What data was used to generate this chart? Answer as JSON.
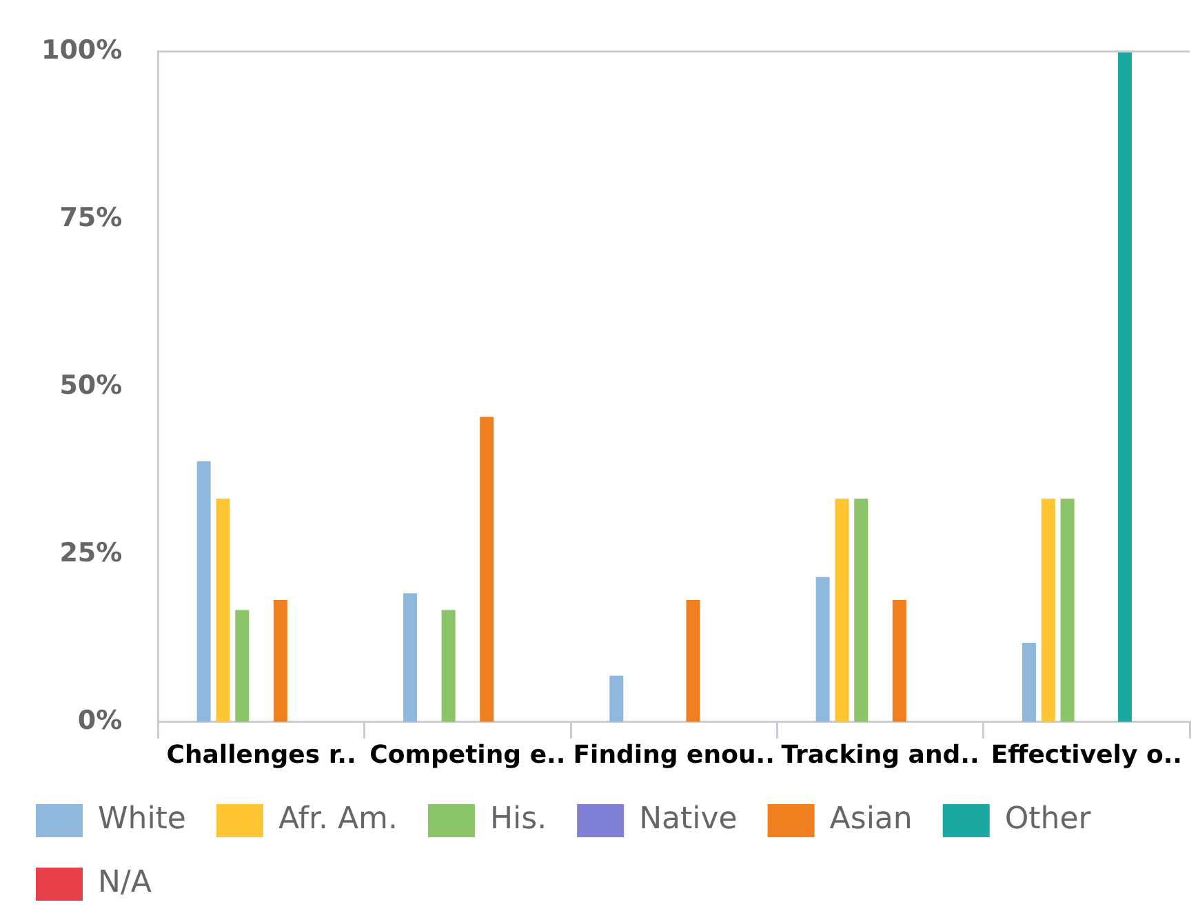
{
  "chart_data": {
    "type": "bar",
    "categories": [
      "Challenges r..",
      "Competing e..",
      "Finding enou..",
      "Tracking and..",
      "Effectively o.."
    ],
    "series": [
      {
        "name": "White",
        "color": "#8fb8dc",
        "values": [
          38.9,
          19.2,
          6.9,
          21.6,
          11.8
        ]
      },
      {
        "name": "Afr. Am.",
        "color": "#ffc533",
        "values": [
          33.3,
          null,
          null,
          33.3,
          33.3
        ]
      },
      {
        "name": "His.",
        "color": "#8cc46a",
        "values": [
          16.7,
          16.7,
          null,
          33.3,
          33.3
        ]
      },
      {
        "name": "Native",
        "color": "#7f7fd6",
        "values": [
          null,
          null,
          null,
          null,
          null
        ]
      },
      {
        "name": "Asian",
        "color": "#f07f1f",
        "values": [
          18.2,
          45.5,
          18.2,
          18.2,
          null
        ]
      },
      {
        "name": "Other",
        "color": "#1aa8a0",
        "values": [
          null,
          null,
          null,
          null,
          100
        ]
      },
      {
        "name": "N/A",
        "color": "#e8404a",
        "values": [
          null,
          null,
          null,
          null,
          null
        ]
      }
    ],
    "ylim": [
      0,
      100
    ],
    "yticks": [
      {
        "value": 0,
        "label": "0%"
      },
      {
        "value": 25,
        "label": "25%"
      },
      {
        "value": 50,
        "label": "50%"
      },
      {
        "value": 75,
        "label": "75%"
      },
      {
        "value": 100,
        "label": "100%"
      }
    ],
    "grid": false,
    "legend": "bottom"
  }
}
